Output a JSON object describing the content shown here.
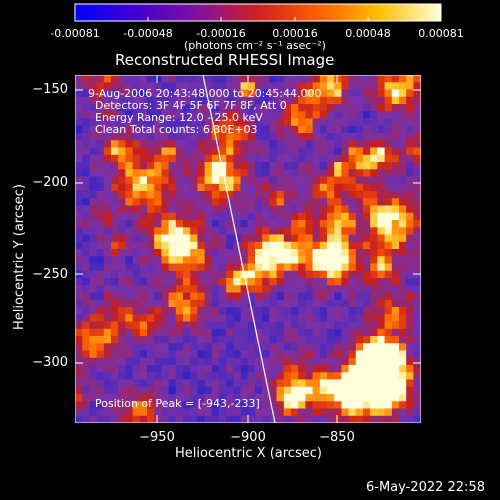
{
  "colorbar": {
    "ticks": [
      "-0.00081",
      "-0.00048",
      "-0.00016",
      "0.00016",
      "0.00048",
      "0.00081"
    ],
    "units_label": "(photons cm⁻² s⁻¹ asec⁻²)",
    "gradient_colors": [
      "#0000ff",
      "#4000d0",
      "#8010a0",
      "#d02020",
      "#ff6000",
      "#ffc000",
      "#ffffe0"
    ]
  },
  "plot": {
    "title": "Reconstructed RHESSI Image",
    "info_lines": [
      "9-Aug-2006 20:43:48.000 to 20:45:44.000",
      "Detectors: 3F 4F 5F 6F 7F 8F, Att 0",
      "Energy Range: 12.0 - 25.0 keV",
      "Clean    Total counts: 6.30E+03"
    ],
    "peak_label": "Position of Peak = [-943,-233]",
    "x_axis": {
      "label": "Heliocentric X (arcsec)",
      "ticks": [
        "−950",
        "−900",
        "−850"
      ]
    },
    "y_axis": {
      "label": "Heliocentric Y (arcsec)",
      "ticks": [
        "−150",
        "−200",
        "−250",
        "−300"
      ]
    },
    "limb_line_color": "#ffffff"
  },
  "footer": {
    "timestamp": "6-May-2022 22:58"
  }
}
